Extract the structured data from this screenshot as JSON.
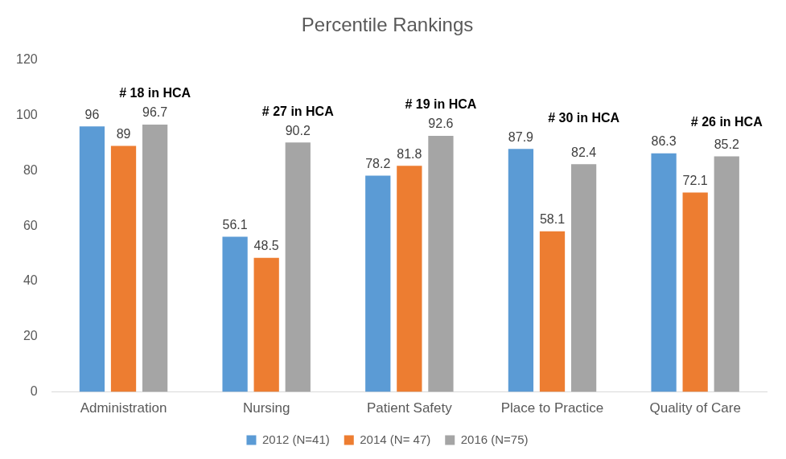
{
  "chart_data": {
    "type": "bar",
    "title": "Percentile Rankings",
    "categories": [
      "Administration",
      "Nursing",
      "Patient Safety",
      "Place to Practice",
      "Quality of Care"
    ],
    "series": [
      {
        "name": "2012 (N=41)",
        "color": "#5B9BD5",
        "values": [
          96,
          56.1,
          78.2,
          87.9,
          86.3
        ]
      },
      {
        "name": "2014 (N= 47)",
        "color": "#ED7D31",
        "values": [
          89,
          48.5,
          81.8,
          58.1,
          72.1
        ]
      },
      {
        "name": "2016 (N=75)",
        "color": "#A5A5A5",
        "values": [
          96.7,
          90.2,
          92.6,
          82.4,
          85.2
        ]
      }
    ],
    "ylim": [
      0,
      120
    ],
    "yticks": [
      0,
      20,
      40,
      60,
      80,
      100,
      120
    ],
    "grid": false,
    "legend": "bottom",
    "data_labels": true,
    "annotations": [
      {
        "category": "Administration",
        "text": "# 18 in HCA"
      },
      {
        "category": "Nursing",
        "text": "# 27 in HCA"
      },
      {
        "category": "Patient Safety",
        "text": "# 19 in HCA"
      },
      {
        "category": "Place to Practice",
        "text": "# 30 in HCA"
      },
      {
        "category": "Quality of Care",
        "text": "# 26 in HCA"
      }
    ]
  }
}
